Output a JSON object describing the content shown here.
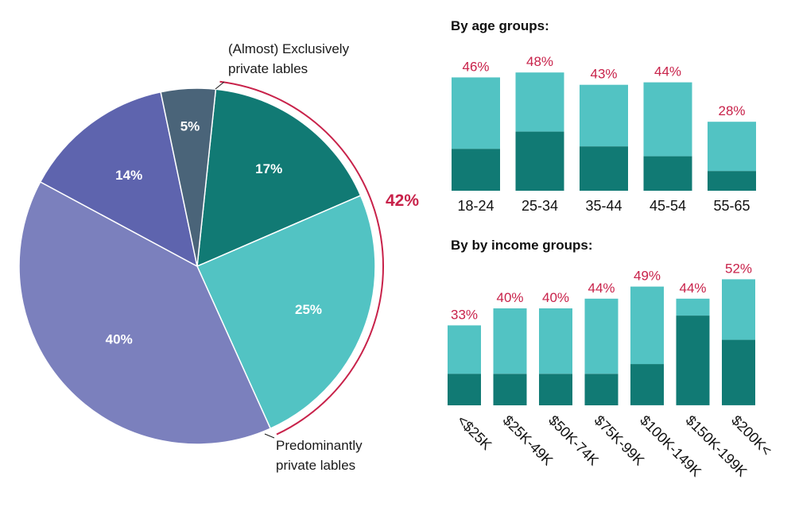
{
  "colors": {
    "bracket": "#c8224a",
    "bar_value_text": "#c8224a",
    "bar_light": "#52c3c3",
    "bar_dark": "#117a74"
  },
  "chart_data": [
    {
      "type": "pie",
      "slices": [
        {
          "label": "17%",
          "value": 17,
          "color": "#117a74"
        },
        {
          "label": "25%",
          "value": 25,
          "color": "#52c3c3"
        },
        {
          "label": "40%",
          "value": 40,
          "color": "#7b80bd"
        },
        {
          "label": "14%",
          "value": 14,
          "color": "#5e64ae"
        },
        {
          "label": "5%",
          "value": 5,
          "color": "#4a6479"
        }
      ],
      "annotations": {
        "top_callout": [
          "(Almost) Exclusively",
          "private lables"
        ],
        "bottom_callout": [
          "Predominantly",
          "private lables"
        ],
        "bracket_total": "42%"
      }
    },
    {
      "type": "bar",
      "stacked": true,
      "title": "By age groups:",
      "categories": [
        "18-24",
        "25-34",
        "35-44",
        "45-54",
        "55-65"
      ],
      "totals": [
        46,
        48,
        43,
        44,
        28
      ],
      "total_labels": [
        "46%",
        "48%",
        "43%",
        "44%",
        "28%"
      ],
      "dark_segment": [
        17,
        24,
        18,
        14,
        8
      ]
    },
    {
      "type": "bar",
      "stacked": true,
      "title": "By by income groups:",
      "categories": [
        "<$25K",
        "$25K-49K",
        "$50K-74K",
        "$75K-99K",
        "$100K-149K",
        "$150K-199K",
        "$200K<"
      ],
      "totals": [
        33,
        40,
        40,
        44,
        49,
        44,
        52
      ],
      "total_labels": [
        "33%",
        "40%",
        "40%",
        "44%",
        "49%",
        "44%",
        "52%"
      ],
      "dark_segment": [
        13,
        13,
        13,
        13,
        17,
        37,
        27
      ]
    }
  ]
}
